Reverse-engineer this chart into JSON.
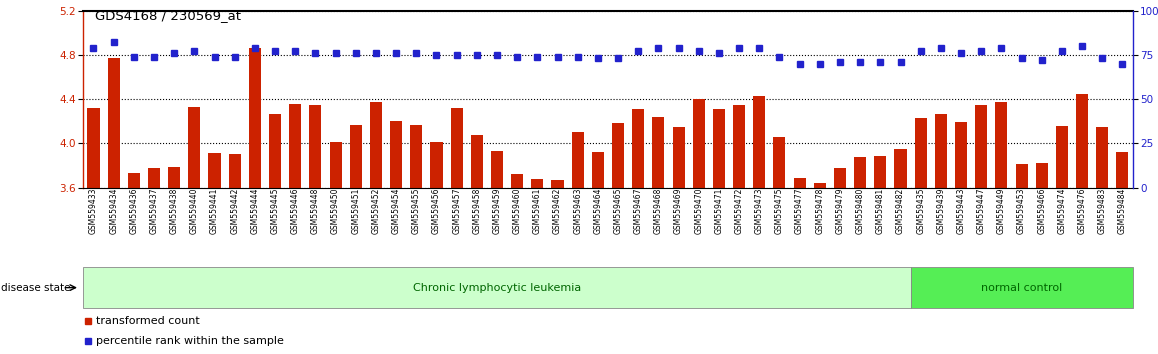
{
  "title": "GDS4168 / 230569_at",
  "categories": [
    "GSM559433",
    "GSM559434",
    "GSM559436",
    "GSM559437",
    "GSM559438",
    "GSM559440",
    "GSM559441",
    "GSM559442",
    "GSM559444",
    "GSM559445",
    "GSM559446",
    "GSM559448",
    "GSM559450",
    "GSM559451",
    "GSM559452",
    "GSM559454",
    "GSM559455",
    "GSM559456",
    "GSM559457",
    "GSM559458",
    "GSM559459",
    "GSM559460",
    "GSM559461",
    "GSM559462",
    "GSM559463",
    "GSM559464",
    "GSM559465",
    "GSM559467",
    "GSM559468",
    "GSM559469",
    "GSM559470",
    "GSM559471",
    "GSM559472",
    "GSM559473",
    "GSM559475",
    "GSM559477",
    "GSM559478",
    "GSM559479",
    "GSM559480",
    "GSM559481",
    "GSM559482",
    "GSM559435",
    "GSM559439",
    "GSM559443",
    "GSM559447",
    "GSM559449",
    "GSM559453",
    "GSM559466",
    "GSM559474",
    "GSM559476",
    "GSM559483",
    "GSM559484"
  ],
  "bar_values": [
    4.32,
    4.77,
    3.73,
    3.78,
    3.79,
    4.33,
    3.91,
    3.9,
    4.86,
    4.27,
    4.36,
    4.35,
    4.01,
    4.17,
    4.37,
    4.2,
    4.17,
    4.01,
    4.32,
    4.08,
    3.93,
    3.72,
    3.68,
    3.67,
    4.1,
    3.92,
    4.18,
    4.31,
    4.24,
    4.15,
    4.4,
    4.31,
    4.35,
    4.43,
    4.06,
    3.69,
    3.64,
    3.78,
    3.88,
    3.89,
    3.95,
    4.23,
    4.27,
    4.19,
    4.35,
    4.37,
    3.81,
    3.82,
    4.16,
    4.45,
    4.15,
    3.92
  ],
  "percentile_values": [
    79,
    82,
    74,
    74,
    76,
    77,
    74,
    74,
    79,
    77,
    77,
    76,
    76,
    76,
    76,
    76,
    76,
    75,
    75,
    75,
    75,
    74,
    74,
    74,
    74,
    73,
    73,
    77,
    79,
    79,
    77,
    76,
    79,
    79,
    74,
    70,
    70,
    71,
    71,
    71,
    71,
    77,
    79,
    76,
    77,
    79,
    73,
    72,
    77,
    80,
    73,
    70
  ],
  "ylim_left": [
    3.6,
    5.2
  ],
  "ylim_right": [
    0,
    100
  ],
  "yticks_left": [
    3.6,
    4.0,
    4.4,
    4.8,
    5.2
  ],
  "yticks_right": [
    0,
    25,
    50,
    75,
    100
  ],
  "bar_color": "#cc2200",
  "dot_color": "#2222cc",
  "bar_bottom": 3.6,
  "disease_state_groups": [
    {
      "label": "Chronic lymphocytic leukemia",
      "start": 0,
      "end": 41,
      "color": "#ccffcc"
    },
    {
      "label": "normal control",
      "start": 41,
      "end": 52,
      "color": "#55ee55"
    }
  ],
  "legend_items": [
    {
      "color": "#cc2200",
      "label": "transformed count"
    },
    {
      "color": "#2222cc",
      "label": "percentile rank within the sample"
    }
  ]
}
